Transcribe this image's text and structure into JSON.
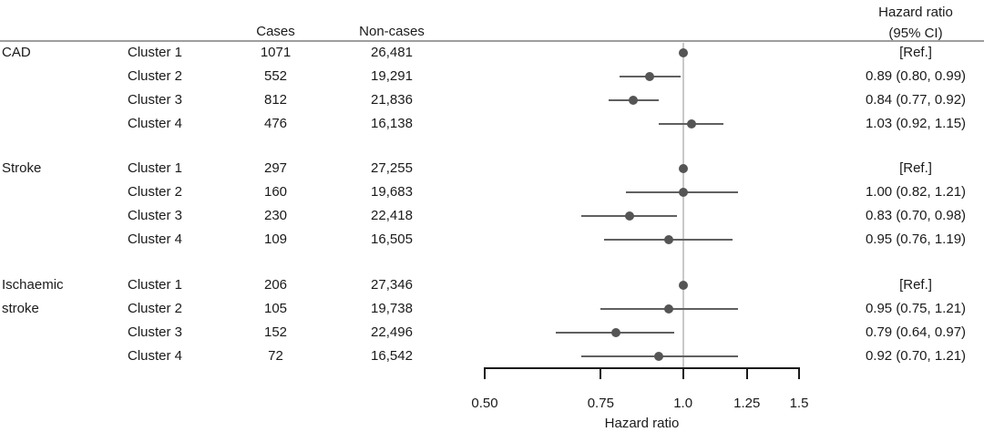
{
  "header": {
    "cases": "Cases",
    "non_cases": "Non-cases",
    "hr_line1": "Hazard ratio",
    "hr_line2": "(95% CI)"
  },
  "groups": [
    {
      "outcome_lines": [
        "CAD"
      ],
      "rows": [
        {
          "cluster": "Cluster 1",
          "cases": "1071",
          "non_cases": "26,481",
          "hr_text": "[Ref.]"
        },
        {
          "cluster": "Cluster 2",
          "cases": "552",
          "non_cases": "19,291",
          "hr_text": "0.89 (0.80, 0.99)"
        },
        {
          "cluster": "Cluster 3",
          "cases": "812",
          "non_cases": "21,836",
          "hr_text": "0.84 (0.77, 0.92)"
        },
        {
          "cluster": "Cluster 4",
          "cases": "476",
          "non_cases": "16,138",
          "hr_text": "1.03 (0.92, 1.15)"
        }
      ]
    },
    {
      "outcome_lines": [
        "Stroke"
      ],
      "rows": [
        {
          "cluster": "Cluster 1",
          "cases": "297",
          "non_cases": "27,255",
          "hr_text": "[Ref.]"
        },
        {
          "cluster": "Cluster 2",
          "cases": "160",
          "non_cases": "19,683",
          "hr_text": "1.00 (0.82, 1.21)"
        },
        {
          "cluster": "Cluster 3",
          "cases": "230",
          "non_cases": "22,418",
          "hr_text": "0.83 (0.70, 0.98)"
        },
        {
          "cluster": "Cluster 4",
          "cases": "109",
          "non_cases": "16,505",
          "hr_text": "0.95 (0.76, 1.19)"
        }
      ]
    },
    {
      "outcome_lines": [
        "Ischaemic",
        "stroke"
      ],
      "rows": [
        {
          "cluster": "Cluster 1",
          "cases": "206",
          "non_cases": "27,346",
          "hr_text": "[Ref.]"
        },
        {
          "cluster": "Cluster 2",
          "cases": "105",
          "non_cases": "19,738",
          "hr_text": "0.95 (0.75, 1.21)"
        },
        {
          "cluster": "Cluster 3",
          "cases": "152",
          "non_cases": "22,496",
          "hr_text": "0.79 (0.64, 0.97)"
        },
        {
          "cluster": "Cluster 4",
          "cases": "72",
          "non_cases": "16,542",
          "hr_text": "0.92 (0.70, 1.21)"
        }
      ]
    }
  ],
  "chart_data": {
    "type": "scatter",
    "subtype": "forest-plot",
    "xlabel": "Hazard ratio",
    "x_scale": "log",
    "xlim": [
      0.5,
      1.5
    ],
    "x_ticks": [
      0.5,
      0.75,
      1.0,
      1.25,
      1.5
    ],
    "x_tick_labels": [
      "0.50",
      "0.75",
      "1.0",
      "1.25",
      "1.5"
    ],
    "reference_line": 1.0,
    "legend": "none",
    "rows": [
      {
        "group": "CAD",
        "label": "Cluster 1",
        "hr": 1.0,
        "lo": null,
        "hi": null,
        "ref": true
      },
      {
        "group": "CAD",
        "label": "Cluster 2",
        "hr": 0.89,
        "lo": 0.8,
        "hi": 0.99,
        "ref": false
      },
      {
        "group": "CAD",
        "label": "Cluster 3",
        "hr": 0.84,
        "lo": 0.77,
        "hi": 0.92,
        "ref": false
      },
      {
        "group": "CAD",
        "label": "Cluster 4",
        "hr": 1.03,
        "lo": 0.92,
        "hi": 1.15,
        "ref": false
      },
      {
        "group": "Stroke",
        "label": "Cluster 1",
        "hr": 1.0,
        "lo": null,
        "hi": null,
        "ref": true
      },
      {
        "group": "Stroke",
        "label": "Cluster 2",
        "hr": 1.0,
        "lo": 0.82,
        "hi": 1.21,
        "ref": false
      },
      {
        "group": "Stroke",
        "label": "Cluster 3",
        "hr": 0.83,
        "lo": 0.7,
        "hi": 0.98,
        "ref": false
      },
      {
        "group": "Stroke",
        "label": "Cluster 4",
        "hr": 0.95,
        "lo": 0.76,
        "hi": 1.19,
        "ref": false
      },
      {
        "group": "Ischaemic stroke",
        "label": "Cluster 1",
        "hr": 1.0,
        "lo": null,
        "hi": null,
        "ref": true
      },
      {
        "group": "Ischaemic stroke",
        "label": "Cluster 2",
        "hr": 0.95,
        "lo": 0.75,
        "hi": 1.21,
        "ref": false
      },
      {
        "group": "Ischaemic stroke",
        "label": "Cluster 3",
        "hr": 0.79,
        "lo": 0.64,
        "hi": 0.97,
        "ref": false
      },
      {
        "group": "Ischaemic stroke",
        "label": "Cluster 4",
        "hr": 0.92,
        "lo": 0.7,
        "hi": 1.21,
        "ref": false
      }
    ],
    "colors": {
      "point": "#555555",
      "ci_line": "#606060",
      "reference_line": "#c9c9c9",
      "axis": "#1a1a1a",
      "separator": "#9e9e9e"
    }
  }
}
